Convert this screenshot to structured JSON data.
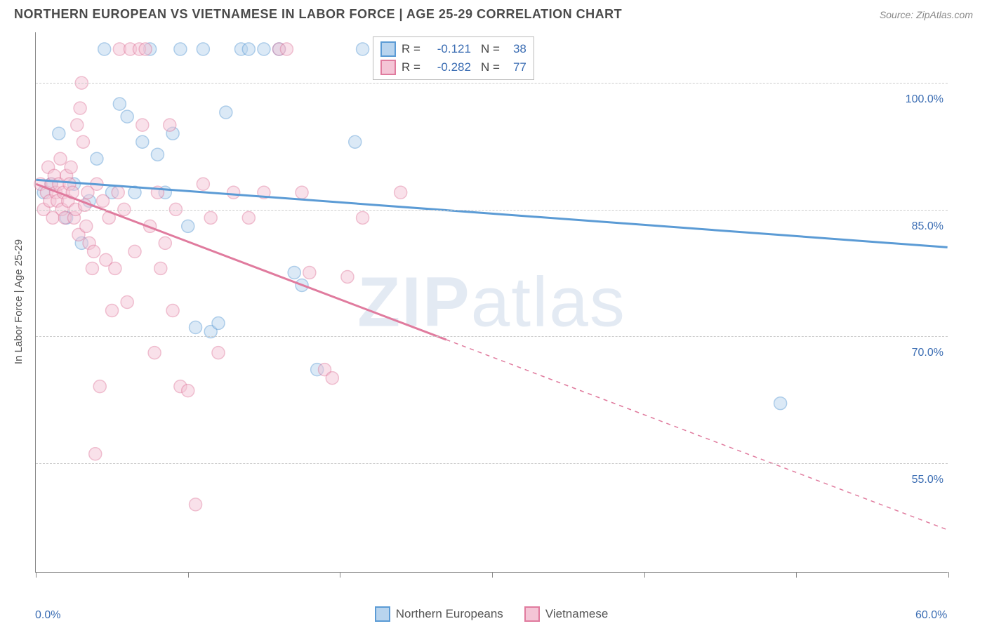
{
  "title": "NORTHERN EUROPEAN VS VIETNAMESE IN LABOR FORCE | AGE 25-29 CORRELATION CHART",
  "source": "Source: ZipAtlas.com",
  "ylabel": "In Labor Force | Age 25-29",
  "watermark_zip": "ZIP",
  "watermark_atlas": "atlas",
  "chart": {
    "type": "scatter-correlation",
    "background_color": "#ffffff",
    "grid_color": "#cccccc",
    "axis_color": "#888888",
    "x_range": [
      0,
      60
    ],
    "y_range": [
      42,
      106
    ],
    "x_ticks": [
      0,
      10,
      20,
      30,
      40,
      50,
      60
    ],
    "x_labels": {
      "0": "0.0%",
      "60": "60.0%"
    },
    "y_gridlines": [
      55,
      70,
      85,
      100
    ],
    "y_labels": {
      "55": "55.0%",
      "70": "70.0%",
      "85": "85.0%",
      "100": "100.0%"
    },
    "label_color": "#3b6db3",
    "label_fontsize": 16,
    "marker_radius": 9,
    "marker_opacity": 0.5,
    "line_width_solid": 3,
    "line_width_dashed": 1.5
  },
  "series": [
    {
      "name": "Northern Europeans",
      "color_stroke": "#5b9bd5",
      "color_fill": "#b8d4ee",
      "R": "-0.121",
      "N": "38",
      "trend": {
        "x1": 0,
        "y1": 88.5,
        "x2": 60,
        "y2": 80.5,
        "solid_until": 60
      },
      "points": [
        [
          0.5,
          87
        ],
        [
          1.0,
          88
        ],
        [
          1.5,
          94
        ],
        [
          2.0,
          84
        ],
        [
          2.5,
          88
        ],
        [
          3.0,
          81
        ],
        [
          3.5,
          86
        ],
        [
          4.0,
          91
        ],
        [
          4.5,
          104
        ],
        [
          5.0,
          87
        ],
        [
          5.5,
          97.5
        ],
        [
          6.0,
          96
        ],
        [
          6.5,
          87
        ],
        [
          7.0,
          93
        ],
        [
          7.5,
          104
        ],
        [
          8.0,
          91.5
        ],
        [
          8.5,
          87
        ],
        [
          9.0,
          94
        ],
        [
          9.5,
          104
        ],
        [
          10.0,
          83
        ],
        [
          10.5,
          71
        ],
        [
          11.0,
          104
        ],
        [
          11.5,
          70.5
        ],
        [
          12.0,
          71.5
        ],
        [
          12.5,
          96.5
        ],
        [
          13.5,
          104
        ],
        [
          14.0,
          104
        ],
        [
          15.0,
          104
        ],
        [
          16.0,
          104
        ],
        [
          17.0,
          77.5
        ],
        [
          17.5,
          76
        ],
        [
          18.5,
          66
        ],
        [
          21.0,
          93
        ],
        [
          21.5,
          104
        ],
        [
          24.5,
          104
        ],
        [
          27.5,
          104
        ],
        [
          30.5,
          104
        ],
        [
          49.0,
          62
        ]
      ]
    },
    {
      "name": "Vietnamese",
      "color_stroke": "#e07b9e",
      "color_fill": "#f4c5d6",
      "R": "-0.282",
      "N": "77",
      "trend": {
        "x1": 0,
        "y1": 88,
        "x2": 60,
        "y2": 47,
        "solid_until": 27
      },
      "points": [
        [
          0.3,
          88
        ],
        [
          0.5,
          85
        ],
        [
          0.7,
          87
        ],
        [
          0.8,
          90
        ],
        [
          0.9,
          86
        ],
        [
          1.0,
          88
        ],
        [
          1.1,
          84
        ],
        [
          1.2,
          89
        ],
        [
          1.3,
          87
        ],
        [
          1.4,
          86
        ],
        [
          1.5,
          88
        ],
        [
          1.6,
          91
        ],
        [
          1.7,
          85
        ],
        [
          1.8,
          87
        ],
        [
          1.9,
          84
        ],
        [
          2.0,
          89
        ],
        [
          2.1,
          86
        ],
        [
          2.2,
          88
        ],
        [
          2.3,
          90
        ],
        [
          2.4,
          87
        ],
        [
          2.5,
          84
        ],
        [
          2.6,
          85
        ],
        [
          2.7,
          95
        ],
        [
          2.8,
          82
        ],
        [
          2.9,
          97
        ],
        [
          3.0,
          100
        ],
        [
          3.1,
          93
        ],
        [
          3.2,
          85.5
        ],
        [
          3.3,
          83
        ],
        [
          3.4,
          87
        ],
        [
          3.5,
          81
        ],
        [
          3.7,
          78
        ],
        [
          3.8,
          80
        ],
        [
          3.9,
          56
        ],
        [
          4.0,
          88
        ],
        [
          4.2,
          64
        ],
        [
          4.4,
          86
        ],
        [
          4.6,
          79
        ],
        [
          4.8,
          84
        ],
        [
          5.0,
          73
        ],
        [
          5.2,
          78
        ],
        [
          5.4,
          87
        ],
        [
          5.5,
          104
        ],
        [
          5.8,
          85
        ],
        [
          6.0,
          74
        ],
        [
          6.2,
          104
        ],
        [
          6.5,
          80
        ],
        [
          6.8,
          104
        ],
        [
          7.0,
          95
        ],
        [
          7.2,
          104
        ],
        [
          7.5,
          83
        ],
        [
          7.8,
          68
        ],
        [
          8.0,
          87
        ],
        [
          8.2,
          78
        ],
        [
          8.5,
          81
        ],
        [
          8.8,
          95
        ],
        [
          9.0,
          73
        ],
        [
          9.2,
          85
        ],
        [
          9.5,
          64
        ],
        [
          10.0,
          63.5
        ],
        [
          10.5,
          50
        ],
        [
          11.0,
          88
        ],
        [
          11.5,
          84
        ],
        [
          12.0,
          68
        ],
        [
          13.0,
          87
        ],
        [
          14.0,
          84
        ],
        [
          15.0,
          87
        ],
        [
          16.0,
          104
        ],
        [
          16.5,
          104
        ],
        [
          17.5,
          87
        ],
        [
          18.0,
          77.5
        ],
        [
          19.0,
          66
        ],
        [
          19.5,
          65
        ],
        [
          20.5,
          77
        ],
        [
          21.5,
          84
        ],
        [
          23.0,
          104
        ],
        [
          24.0,
          87
        ]
      ]
    }
  ],
  "stats_labels": {
    "R": "R =",
    "N": "N ="
  },
  "legend": {
    "series1": "Northern Europeans",
    "series2": "Vietnamese"
  }
}
